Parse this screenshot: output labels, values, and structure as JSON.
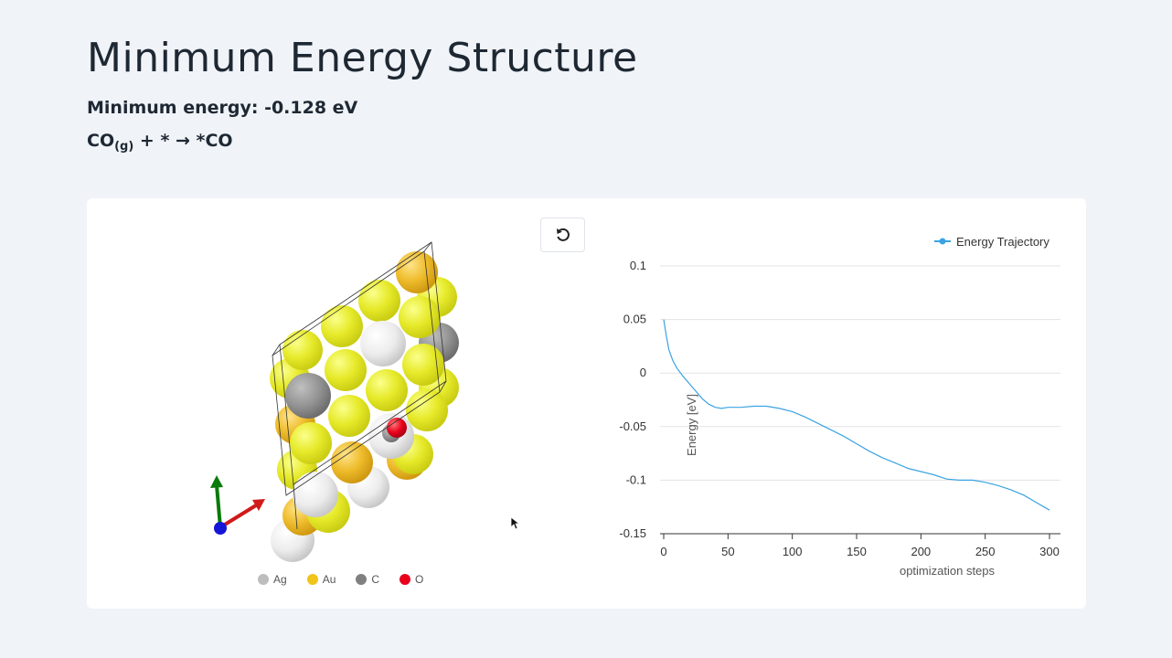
{
  "page": {
    "title": "Minimum Energy Structure",
    "min_energy": "Minimum energy: -0.128 eV",
    "reaction": {
      "lhs": "CO",
      "sub": "(g)",
      "rhs": " + * → *CO"
    }
  },
  "structure": {
    "reset_icon": "rotate-ccw-icon",
    "elements": [
      {
        "label": "Ag",
        "color": "#bdbdbd"
      },
      {
        "label": "Au",
        "color": "#f0c419"
      },
      {
        "label": "C",
        "color": "#808080"
      },
      {
        "label": "O",
        "color": "#e8001c"
      }
    ]
  },
  "chart_data": {
    "type": "line",
    "legend": "Energy Trajectory",
    "legend_position": "top-right",
    "xlabel": "optimization steps",
    "ylabel": "Energy [eV]",
    "xlim": [
      0,
      302
    ],
    "ylim": [
      -0.15,
      0.1
    ],
    "xticks": [
      0,
      50,
      100,
      150,
      200,
      250,
      300
    ],
    "yticks": [
      0.1,
      0.05,
      0,
      -0.05,
      -0.1,
      -0.15
    ],
    "ytick_labels": [
      "0.1",
      "0.05",
      "0",
      "-0.05",
      "-0.1",
      "-0.15"
    ],
    "grid": true,
    "color": "#3ba3e2",
    "series": [
      {
        "name": "Energy Trajectory",
        "x": [
          0,
          2,
          4,
          7,
          10,
          15,
          20,
          25,
          30,
          35,
          40,
          45,
          50,
          60,
          70,
          80,
          90,
          100,
          110,
          120,
          130,
          140,
          150,
          160,
          170,
          180,
          190,
          200,
          210,
          220,
          230,
          240,
          250,
          260,
          270,
          280,
          290,
          300
        ],
        "y": [
          0.05,
          0.035,
          0.022,
          0.012,
          0.005,
          -0.003,
          -0.01,
          -0.017,
          -0.024,
          -0.029,
          -0.032,
          -0.033,
          -0.032,
          -0.032,
          -0.031,
          -0.031,
          -0.033,
          -0.036,
          -0.041,
          -0.047,
          -0.053,
          -0.059,
          -0.066,
          -0.073,
          -0.079,
          -0.084,
          -0.089,
          -0.092,
          -0.095,
          -0.099,
          -0.1,
          -0.1,
          -0.102,
          -0.105,
          -0.109,
          -0.114,
          -0.121,
          -0.128
        ]
      }
    ]
  }
}
